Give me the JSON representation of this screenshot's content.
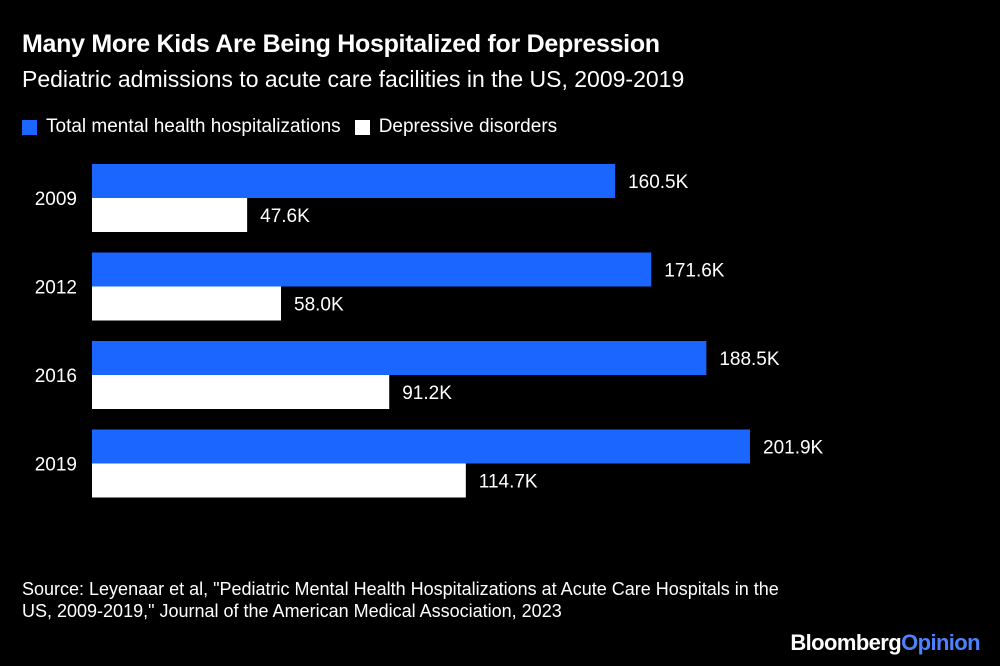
{
  "title": "Many More Kids Are Being Hospitalized for Depression",
  "subtitle": "Pediatric admissions to acute care facilities in the US, 2009-2019",
  "colors": {
    "background": "#000000",
    "series_total": "#1a66ff",
    "series_depressive": "#ffffff",
    "text": "#ffffff",
    "brand_accent": "#4d82ff"
  },
  "legend": [
    {
      "label": "Total mental health hospitalizations",
      "color": "#1a66ff"
    },
    {
      "label": "Depressive disorders",
      "color": "#ffffff"
    }
  ],
  "chart_data": {
    "type": "bar",
    "orientation": "horizontal",
    "title": "Many More Kids Are Being Hospitalized for Depression",
    "subtitle": "Pediatric admissions to acute care facilities in the US, 2009-2019",
    "categories": [
      "2009",
      "2012",
      "2016",
      "2019"
    ],
    "series": [
      {
        "name": "Total mental health hospitalizations",
        "values": [
          160.5,
          171.6,
          188.5,
          201.9
        ],
        "labels": [
          "160.5K",
          "171.6K",
          "188.5K",
          "201.9K"
        ]
      },
      {
        "name": "Depressive disorders",
        "values": [
          47.6,
          58.0,
          91.2,
          114.7
        ],
        "labels": [
          "47.6K",
          "58.0K",
          "91.2K",
          "114.7K"
        ]
      }
    ],
    "units": "thousands",
    "xlim": [
      0,
      230
    ],
    "grid": false,
    "legend_position": "top-left"
  },
  "source": "Source: Leyenaar et al, \"Pediatric Mental Health Hospitalizations at Acute Care Hospitals in the US, 2009-2019,\" Journal of the American Medical Association, 2023",
  "brand": {
    "name": "Bloomberg",
    "section": "Opinion"
  }
}
